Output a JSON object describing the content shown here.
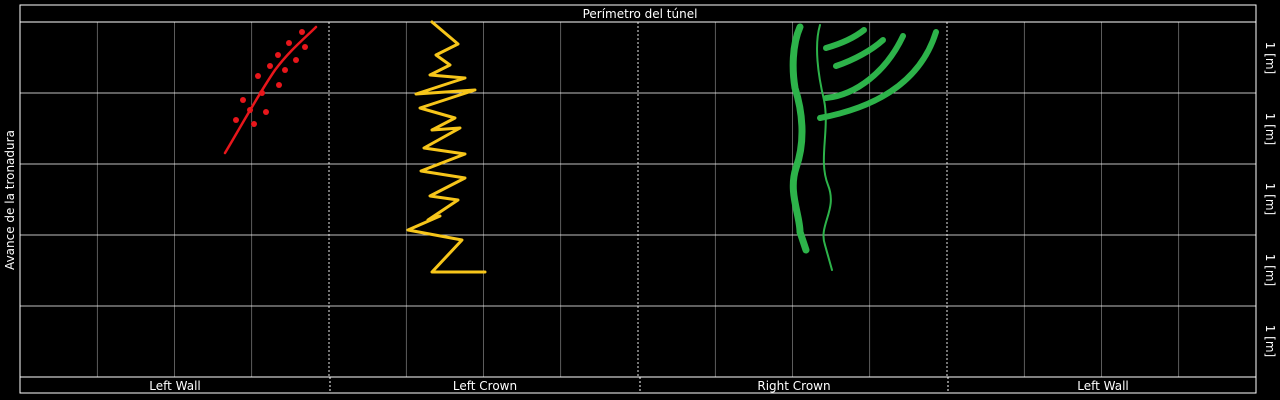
{
  "header": {
    "title": "Perímetro del túnel"
  },
  "side_axis": {
    "label": "Avance de la tronadura"
  },
  "sections": [
    {
      "label": "Left Wall"
    },
    {
      "label": "Left Crown"
    },
    {
      "label": "Right Crown"
    },
    {
      "label": "Left Wall"
    }
  ],
  "row_labels": [
    "1 [m]",
    "1 [m]",
    "1 [m]",
    "1 [m]",
    "1 [m]"
  ],
  "colors": {
    "background": "#000000",
    "grid": "#ffffff",
    "red_sketch": "#e8161b",
    "yellow_sketch": "#f7c61a",
    "green_sketch": "#2db34a"
  }
}
